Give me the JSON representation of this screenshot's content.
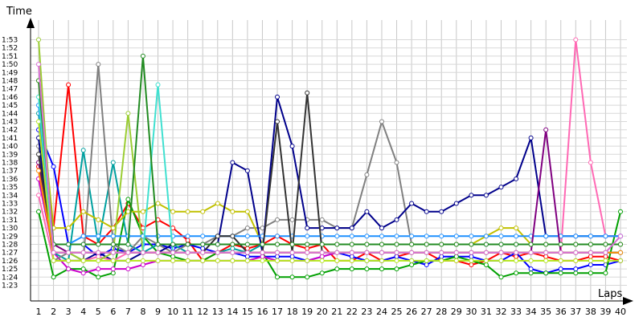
{
  "chart_data": {
    "type": "line",
    "ylabel": "Time",
    "xlabel": "Laps",
    "x": [
      1,
      2,
      3,
      4,
      5,
      6,
      7,
      8,
      9,
      10,
      11,
      12,
      13,
      14,
      15,
      16,
      17,
      18,
      19,
      20,
      21,
      22,
      23,
      24,
      25,
      26,
      27,
      28,
      29,
      30,
      31,
      32,
      33,
      34,
      35,
      36,
      37,
      38,
      39,
      40
    ],
    "x_tick_labels": [
      "1",
      "2",
      "3",
      "4",
      "5",
      "6",
      "7",
      "8",
      "9",
      "10",
      "11",
      "12",
      "13",
      "14",
      "15",
      "16",
      "17",
      "18",
      "19",
      "20",
      "21",
      "22",
      "23",
      "24",
      "25",
      "26",
      "27",
      "28",
      "29",
      "30",
      "31",
      "32",
      "33",
      "34",
      "35",
      "36",
      "37",
      "38",
      "39",
      "40"
    ],
    "y_tick_labels": [
      "1:23",
      "1:24",
      "1:25",
      "1:26",
      "1:27",
      "1:28",
      "1:29",
      "1:30",
      "1:31",
      "1:32",
      "1:33",
      "1:34",
      "1:35",
      "1:36",
      "1:37",
      "1:38",
      "1:39",
      "1:40",
      "1:41",
      "1:42",
      "1:43",
      "1:44",
      "1:45",
      "1:46",
      "1:47",
      "1:48",
      "1:49",
      "1:50",
      "1:51",
      "1:52",
      "1:53"
    ],
    "y_tick_seconds": [
      83,
      84,
      85,
      86,
      87,
      88,
      89,
      90,
      91,
      92,
      93,
      94,
      95,
      96,
      97,
      98,
      99,
      100,
      101,
      102,
      103,
      104,
      105,
      106,
      107,
      108,
      109,
      110,
      111,
      112,
      113
    ],
    "ylim_seconds": [
      82,
      115
    ],
    "grid": true,
    "series": [
      {
        "color": "#ff0000",
        "values": [
          97.5,
          90,
          107.5,
          89,
          88,
          90,
          93,
          90,
          91,
          90,
          88.5,
          86,
          87,
          88,
          87.5,
          88,
          89,
          88,
          87.5,
          88,
          86,
          86,
          87,
          86,
          86.5,
          87,
          87,
          86,
          86,
          85.5,
          86,
          87,
          86.5,
          87,
          86.5,
          86,
          86,
          86.5,
          86.5,
          86
        ]
      },
      {
        "color": "#0000ff",
        "values": [
          102,
          97.5,
          88,
          88,
          86.5,
          87.5,
          87,
          88,
          88,
          87.5,
          88,
          87.5,
          87,
          87,
          86.5,
          86.5,
          86.5,
          86.5,
          86,
          86.5,
          87,
          86.5,
          86,
          86,
          86.5,
          86,
          85.5,
          86.5,
          86.5,
          86.5,
          86,
          86,
          87,
          85,
          84.5,
          85,
          85,
          85.5,
          85.5,
          86
        ]
      },
      {
        "color": "#00a000",
        "values": [
          92,
          84,
          85,
          85,
          84,
          84.5,
          93.5,
          89,
          87,
          86.5,
          86,
          86,
          87,
          87,
          87,
          87,
          84,
          84,
          84,
          84.5,
          85,
          85,
          85,
          85,
          85,
          85.5,
          86,
          86,
          86.5,
          86,
          85.5,
          84,
          84.5,
          84.5,
          84.5,
          84.5,
          84.5,
          84.5,
          84.5,
          92
        ]
      },
      {
        "color": "#cc00cc",
        "values": [
          96,
          87,
          85,
          84.5,
          85,
          85,
          85,
          85.5,
          86,
          86,
          86,
          86,
          86,
          86,
          86,
          86.5,
          86,
          86,
          86,
          86.5,
          87,
          87,
          87,
          87,
          87,
          87,
          87,
          87,
          87,
          87,
          87,
          87,
          87,
          87,
          87,
          87,
          87,
          87,
          87,
          87
        ]
      },
      {
        "color": "#00a0a0",
        "values": [
          104,
          87,
          86,
          99.5,
          88,
          98,
          88,
          87,
          88,
          88,
          87,
          87,
          87,
          87.5,
          87,
          88,
          88,
          88,
          88,
          88,
          88,
          88,
          88,
          88,
          88,
          88,
          88,
          88,
          88,
          88,
          88,
          88,
          88,
          88,
          88,
          88,
          88,
          88,
          88,
          88
        ]
      },
      {
        "color": "#808080",
        "values": [
          100,
          86,
          87,
          86,
          110,
          88,
          87,
          89,
          88,
          87,
          88,
          88,
          89,
          89,
          90,
          90,
          91,
          91,
          91,
          91,
          90,
          90,
          96.5,
          103,
          98,
          88,
          88,
          88,
          88,
          88,
          88,
          88,
          88,
          88,
          88,
          88,
          88,
          88,
          88,
          88
        ]
      },
      {
        "color": "#c0c000",
        "values": [
          108,
          90,
          90,
          92,
          91,
          90,
          92,
          92,
          93,
          92,
          92,
          92,
          93,
          92,
          92,
          88,
          88,
          88,
          88,
          88,
          88,
          88,
          88,
          88,
          88,
          88,
          88,
          88,
          88,
          88,
          89,
          90,
          90,
          88,
          88,
          88,
          88,
          88,
          88,
          88
        ]
      },
      {
        "color": "#00008b",
        "values": [
          101,
          86,
          86,
          86,
          87,
          86,
          86,
          87,
          87,
          88,
          88,
          88,
          88,
          98,
          97,
          87,
          106,
          100,
          90,
          90,
          90,
          90,
          92,
          90,
          91,
          93,
          92,
          92,
          93,
          94,
          94,
          95,
          96,
          101,
          89,
          89,
          89,
          89,
          89,
          89
        ]
      },
      {
        "color": "#ff69b4",
        "values": [
          94,
          86,
          86,
          86,
          86.5,
          86,
          87,
          87,
          87,
          87,
          87,
          87,
          87,
          87,
          87,
          87,
          87,
          87,
          87,
          87,
          87,
          87,
          87,
          87,
          87,
          87,
          87,
          87,
          87,
          87,
          87,
          87,
          87,
          87,
          87,
          87,
          113,
          98,
          89,
          89
        ]
      },
      {
        "color": "#9acd32",
        "values": [
          113,
          87,
          87,
          86,
          86,
          87,
          104,
          87,
          87,
          87,
          87,
          87,
          87,
          87,
          87,
          87,
          87,
          87,
          87,
          87,
          87,
          87,
          87,
          87,
          87,
          87,
          87,
          87,
          87,
          87,
          87,
          87,
          87,
          87,
          87,
          87,
          87,
          87,
          87,
          87
        ]
      },
      {
        "color": "#1e90ff",
        "values": [
          105,
          88,
          88,
          89,
          89,
          89,
          89,
          89,
          89,
          89,
          89,
          89,
          89,
          89,
          89,
          89,
          89,
          89,
          89,
          89,
          89,
          89,
          89,
          89,
          89,
          89,
          89,
          89,
          89,
          89,
          89,
          89,
          89,
          89,
          89,
          89,
          89,
          89,
          89,
          89
        ]
      },
      {
        "color": "#800080",
        "values": [
          98,
          88,
          87,
          87,
          87,
          87,
          87,
          87,
          87,
          87,
          87,
          87,
          87,
          87,
          87,
          87,
          87,
          87,
          87,
          87,
          87,
          87,
          87,
          87,
          87,
          87,
          87,
          87,
          87,
          87,
          87,
          87,
          87,
          87,
          102,
          87,
          87,
          87,
          87,
          87
        ]
      },
      {
        "color": "#333333",
        "values": [
          99,
          87,
          87,
          87,
          87,
          87,
          87,
          87,
          87,
          87,
          87,
          87,
          89,
          89,
          87,
          87,
          103,
          87,
          106.5,
          87,
          87,
          87,
          87,
          87,
          87,
          87,
          87,
          87,
          87,
          87,
          87,
          87,
          87,
          87,
          87,
          87,
          87,
          87,
          87,
          87
        ]
      },
      {
        "color": "#b5e61d",
        "values": [
          103,
          86,
          86,
          86,
          86,
          86,
          86,
          86,
          86,
          86,
          86,
          86,
          86,
          86,
          86,
          86,
          86,
          86,
          86,
          86,
          86,
          86,
          86,
          86,
          86,
          86,
          86,
          86,
          86,
          86,
          86,
          86,
          86,
          86,
          86,
          86,
          86,
          86,
          86,
          86
        ]
      },
      {
        "color": "#40e0d0",
        "values": [
          106,
          87,
          87,
          87,
          87,
          87,
          87,
          87,
          107.5,
          87,
          87,
          87,
          87,
          87,
          87,
          87,
          87,
          87,
          87,
          87,
          87,
          87,
          87,
          87,
          87,
          87,
          87,
          87,
          87,
          87,
          87,
          87,
          87,
          87,
          87,
          87,
          87,
          87,
          87,
          87
        ]
      },
      {
        "color": "#228b22",
        "values": [
          108,
          88,
          88,
          88,
          88,
          88,
          88,
          111,
          88,
          88,
          88,
          88,
          88,
          88,
          88,
          88,
          88,
          88,
          88,
          88,
          88,
          88,
          88,
          88,
          88,
          88,
          88,
          88,
          88,
          88,
          88,
          88,
          88,
          88,
          88,
          88,
          88,
          88,
          88,
          88
        ]
      },
      {
        "color": "#ff8c00",
        "values": [
          97,
          87,
          87,
          87,
          87,
          87,
          87,
          87,
          87,
          87,
          87,
          87,
          87,
          87,
          87,
          87,
          87,
          87,
          87,
          87,
          87,
          87,
          87,
          87,
          87,
          87,
          87,
          87,
          87,
          87,
          87,
          87,
          87,
          87,
          87,
          87,
          87,
          87,
          87,
          87
        ]
      },
      {
        "color": "#da70d6",
        "values": [
          110,
          87,
          87,
          87,
          87,
          87,
          87,
          87,
          87,
          87,
          87,
          87,
          87,
          87,
          87,
          87,
          87,
          87,
          87,
          87,
          87,
          87,
          87,
          87,
          87,
          87,
          87,
          87,
          87,
          87,
          87,
          87,
          87,
          87,
          87,
          87,
          87,
          87,
          87,
          89
        ]
      }
    ]
  }
}
